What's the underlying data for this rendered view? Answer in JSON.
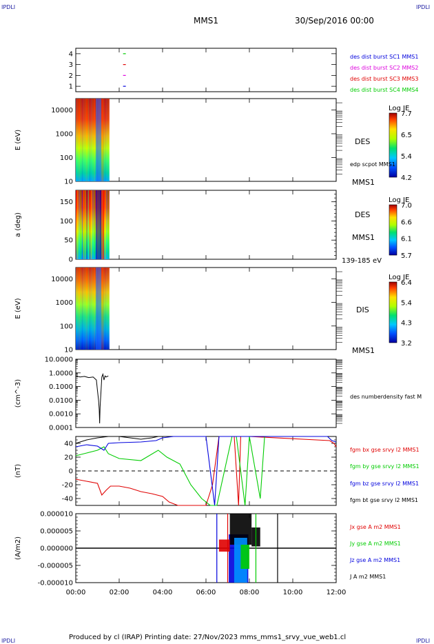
{
  "header": {
    "corner_left_top": "IPDLI",
    "corner_right_top": "IPDLI",
    "corner_left_bottom": "IPDLI",
    "corner_right_bottom": "IPDLI",
    "spacecraft": "MMS1",
    "date": "30/Sep/2016 00:00"
  },
  "footer": {
    "text": "Produced by cl (IRAP)   Printing date: 27/Nov/2023   mms_mms1_srvy_vue_web1.cl"
  },
  "colors": {
    "red": "#e00000",
    "green": "#00cc00",
    "blue": "#0000dd",
    "magenta": "#dd00dd",
    "black": "#000000"
  },
  "chart_data": [
    {
      "type": "scatter",
      "panel": "burst-availability",
      "ylim": [
        0.5,
        4.5
      ],
      "yticks": [
        "4",
        "3",
        "2",
        "1"
      ],
      "xlim": [
        0,
        12
      ],
      "series": [
        {
          "name": "des dist burst SC1 MMS1",
          "color": "#0000dd",
          "y": 1,
          "x": [
            1.1,
            1.3
          ]
        },
        {
          "name": "des dist burst SC2 MMS2",
          "color": "#dd00dd",
          "y": 2,
          "x": [
            1.1,
            1.3
          ]
        },
        {
          "name": "des dist burst SC3 MMS3",
          "color": "#e00000",
          "y": 3,
          "x": [
            1.1,
            1.3
          ]
        },
        {
          "name": "des dist burst SC4 MMS4",
          "color": "#00cc00",
          "y": 4,
          "x": [
            1.1,
            1.3
          ]
        }
      ]
    },
    {
      "type": "heatmap",
      "panel": "des-energy",
      "ylabel": "E (eV)",
      "scale": "log",
      "ylim": [
        10,
        30000
      ],
      "yticks": [
        "10000",
        "1000",
        "100",
        "10"
      ],
      "x_extent": [
        0,
        1.55
      ],
      "labels": {
        "instrument": "DES",
        "extra": "edp scpot MMS1",
        "sc": "MMS1"
      },
      "colorbar": {
        "title": "Log JE",
        "ticks": [
          "7.7",
          "6.5",
          "5.4",
          "4.2"
        ],
        "range": [
          4.2,
          7.7
        ]
      }
    },
    {
      "type": "heatmap",
      "panel": "des-pitch",
      "ylabel": "a (deg)",
      "ylim": [
        0,
        180
      ],
      "yticks": [
        "150",
        "100",
        "50",
        "0"
      ],
      "x_extent": [
        0,
        1.55
      ],
      "labels": {
        "instrument": "DES",
        "sc": "MMS1",
        "range": "139-185 eV"
      },
      "colorbar": {
        "title": "Log JE",
        "ticks": [
          "7.0",
          "6.6",
          "6.1",
          "5.7"
        ],
        "range": [
          5.7,
          7.0
        ]
      }
    },
    {
      "type": "heatmap",
      "panel": "dis-energy",
      "ylabel": "E (eV)",
      "scale": "log",
      "ylim": [
        10,
        30000
      ],
      "yticks": [
        "10000",
        "1000",
        "100",
        "10"
      ],
      "x_extent": [
        0,
        1.55
      ],
      "labels": {
        "instrument": "DIS",
        "sc": "MMS1"
      },
      "colorbar": {
        "title": "Log JE",
        "ticks": [
          "6.4",
          "5.4",
          "4.3",
          "3.2"
        ],
        "range": [
          3.2,
          6.4
        ]
      }
    },
    {
      "type": "line",
      "panel": "density",
      "ylabel": "(cm^-3)",
      "scale": "log",
      "ylim": [
        0.0001,
        10
      ],
      "yticks": [
        "10.0000",
        "1.0000",
        "0.1000",
        "0.0100",
        "0.0010",
        "0.0001"
      ],
      "series": [
        {
          "name": "des numberdensity fast M",
          "color": "#000000",
          "x": [
            0.0,
            0.2,
            0.4,
            0.6,
            0.8,
            0.95,
            1.0,
            1.05,
            1.08,
            1.1,
            1.12,
            1.15,
            1.2,
            1.25,
            1.3,
            1.35,
            1.4,
            1.5
          ],
          "y": [
            0.6,
            0.5,
            0.55,
            0.45,
            0.5,
            0.3,
            0.05,
            0.01,
            0.002,
            0.0002,
            0.003,
            0.02,
            0.5,
            0.8,
            0.3,
            0.6,
            0.5,
            0.6
          ]
        }
      ]
    },
    {
      "type": "line",
      "panel": "magnetic-field",
      "ylabel": "(nT)",
      "ylim": [
        -50,
        50
      ],
      "yticks": [
        "40",
        "20",
        "0",
        "-20",
        "-40"
      ],
      "series": [
        {
          "name": "fgm bx gse srvy l2 MMS1",
          "color": "#e00000",
          "x": [
            0.0,
            0.5,
            1.0,
            1.2,
            1.4,
            1.6,
            2.0,
            2.5,
            3.0,
            3.5,
            4.0,
            4.3,
            4.7,
            6.0,
            6.3,
            6.6,
            7.3,
            7.5,
            7.6,
            8.0,
            11.7,
            11.9,
            12.0
          ],
          "y": [
            -12,
            -15,
            -18,
            -35,
            -28,
            -22,
            -22,
            -25,
            -30,
            -33,
            -37,
            -45,
            -50,
            -50,
            -20,
            50,
            50,
            -50,
            50,
            50,
            44,
            40,
            35
          ]
        },
        {
          "name": "fgm by gse srvy l2 MMS1",
          "color": "#00cc00",
          "x": [
            0.0,
            0.5,
            1.0,
            1.3,
            1.5,
            2.0,
            3.0,
            3.8,
            4.2,
            4.8,
            5.3,
            5.8,
            6.2,
            6.5,
            7.2,
            7.4,
            7.8,
            8.0,
            8.5,
            8.7,
            9.0
          ],
          "y": [
            22,
            26,
            30,
            35,
            25,
            18,
            15,
            30,
            20,
            10,
            -20,
            -40,
            -50,
            -50,
            50,
            50,
            -50,
            50,
            -40,
            50,
            50
          ]
        },
        {
          "name": "fgm bz gse srvy l2 MMS1",
          "color": "#0000dd",
          "x": [
            0.0,
            0.5,
            1.0,
            1.3,
            1.5,
            2.0,
            3.0,
            3.7,
            4.0,
            4.5,
            6.0,
            6.4,
            6.6,
            11.6,
            11.8,
            12.0
          ],
          "y": [
            35,
            38,
            36,
            30,
            40,
            41,
            42,
            44,
            48,
            50,
            50,
            -50,
            50,
            50,
            44,
            42
          ]
        },
        {
          "name": "fgm bt gse srvy l2 MMS1",
          "color": "#000000",
          "x": [
            0.0,
            0.5,
            1.0,
            1.5,
            2.0,
            2.5,
            3.0,
            3.5,
            3.8,
            4.0
          ],
          "y": [
            40,
            45,
            48,
            50,
            50,
            48,
            46,
            48,
            50,
            50
          ]
        }
      ]
    },
    {
      "type": "line",
      "panel": "current-density",
      "ylabel": "(A/m2)",
      "ylim": [
        -1e-05,
        1e-05
      ],
      "yticks": [
        "0.000010",
        "0.000005",
        "0.000000",
        "-0.000005",
        "-0.000010"
      ],
      "series": [
        {
          "name": "Jx gse A m2 MMS1",
          "color": "#e00000"
        },
        {
          "name": "Jy gse A m2 MMS1",
          "color": "#00cc00"
        },
        {
          "name": "Jz gse A m2 MMS1",
          "color": "#0000dd"
        },
        {
          "name": "J A m2 MMS1",
          "color": "#000000"
        }
      ],
      "active_interval": [
        6.5,
        9.3
      ]
    }
  ],
  "x_axis": {
    "ticks": [
      "00:00",
      "02:00",
      "04:00",
      "06:00",
      "08:00",
      "10:00",
      "12:00"
    ],
    "range_hours": [
      0,
      12
    ]
  }
}
